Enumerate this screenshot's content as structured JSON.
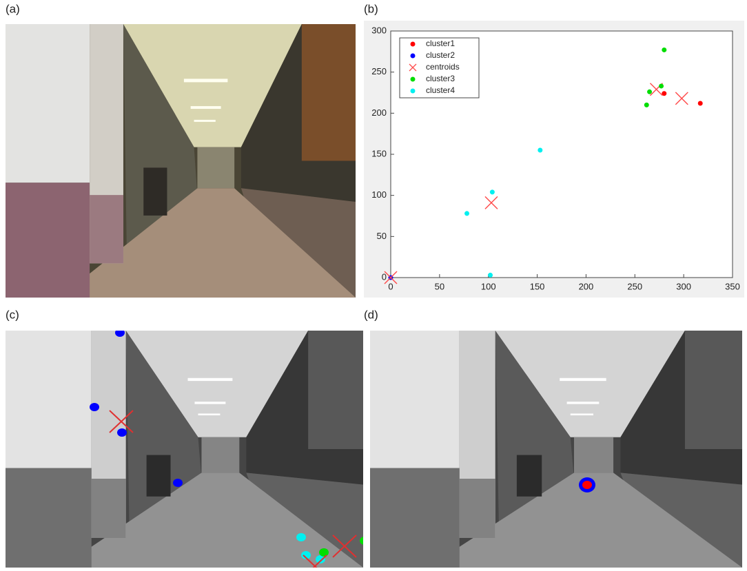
{
  "panel_labels": [
    "(a)",
    "(b)",
    "(c)",
    "(d)"
  ],
  "chart_data": {
    "type": "scatter",
    "xlim": [
      0,
      350
    ],
    "xticks": [
      0,
      50,
      100,
      150,
      200,
      250,
      300,
      350
    ],
    "ylim": [
      0,
      300
    ],
    "yticks": [
      0,
      50,
      100,
      150,
      200,
      250,
      300
    ],
    "legend": "upper left",
    "series": [
      {
        "name": "cluster1",
        "color": "#ff0000",
        "marker": "o",
        "x": [
          280,
          317
        ],
        "values": [
          224,
          212
        ]
      },
      {
        "name": "cluster2",
        "color": "#0000ff",
        "marker": "o",
        "x": [
          0
        ],
        "values": [
          0
        ]
      },
      {
        "name": "centroids",
        "color": "#ff4d4d",
        "marker": "x",
        "x": [
          0,
          103,
          272,
          298
        ],
        "values": [
          0,
          91,
          229,
          218
        ]
      },
      {
        "name": "cluster3",
        "color": "#00dd00",
        "marker": "o",
        "x": [
          280,
          265,
          262,
          277
        ],
        "values": [
          277,
          226,
          210,
          233
        ]
      },
      {
        "name": "cluster4",
        "color": "#00f0f0",
        "marker": "o",
        "x": [
          78,
          104,
          153,
          102
        ],
        "values": [
          78,
          104,
          155,
          3
        ]
      }
    ]
  }
}
